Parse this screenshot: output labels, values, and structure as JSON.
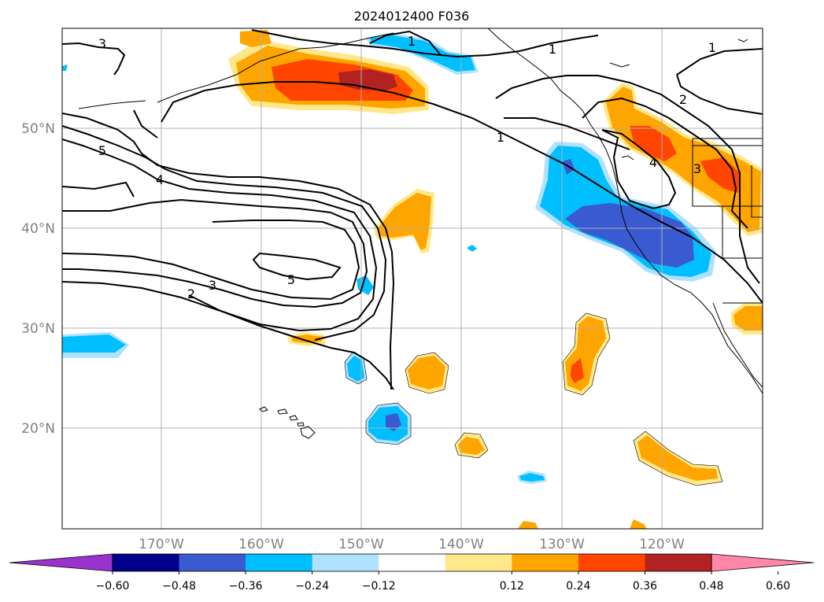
{
  "title": "2024012400 F036",
  "lat_labels": [
    "50°N",
    "40°N",
    "30°N",
    "20°N"
  ],
  "lon_labels": [
    "170°W",
    "160°W",
    "150°W",
    "140°W",
    "130°W",
    "120°W"
  ],
  "colorbar": {
    "ticks": [
      "−0.60",
      "−0.48",
      "−0.36",
      "−0.24",
      "−0.12",
      "0.12",
      "0.24",
      "0.36",
      "0.48",
      "0.60"
    ],
    "colors": [
      "#9933cc",
      "#00008b",
      "#3a5bd0",
      "#00bfff",
      "#b0e2ff",
      "#ffffff",
      "#ffe88a",
      "#ffa500",
      "#ff4500",
      "#b22222",
      "#ff88aa"
    ]
  },
  "contour_labels": [
    "1",
    "1",
    "1",
    "1",
    "2",
    "2",
    "3",
    "3",
    "3",
    "4",
    "4",
    "5",
    "5"
  ]
}
